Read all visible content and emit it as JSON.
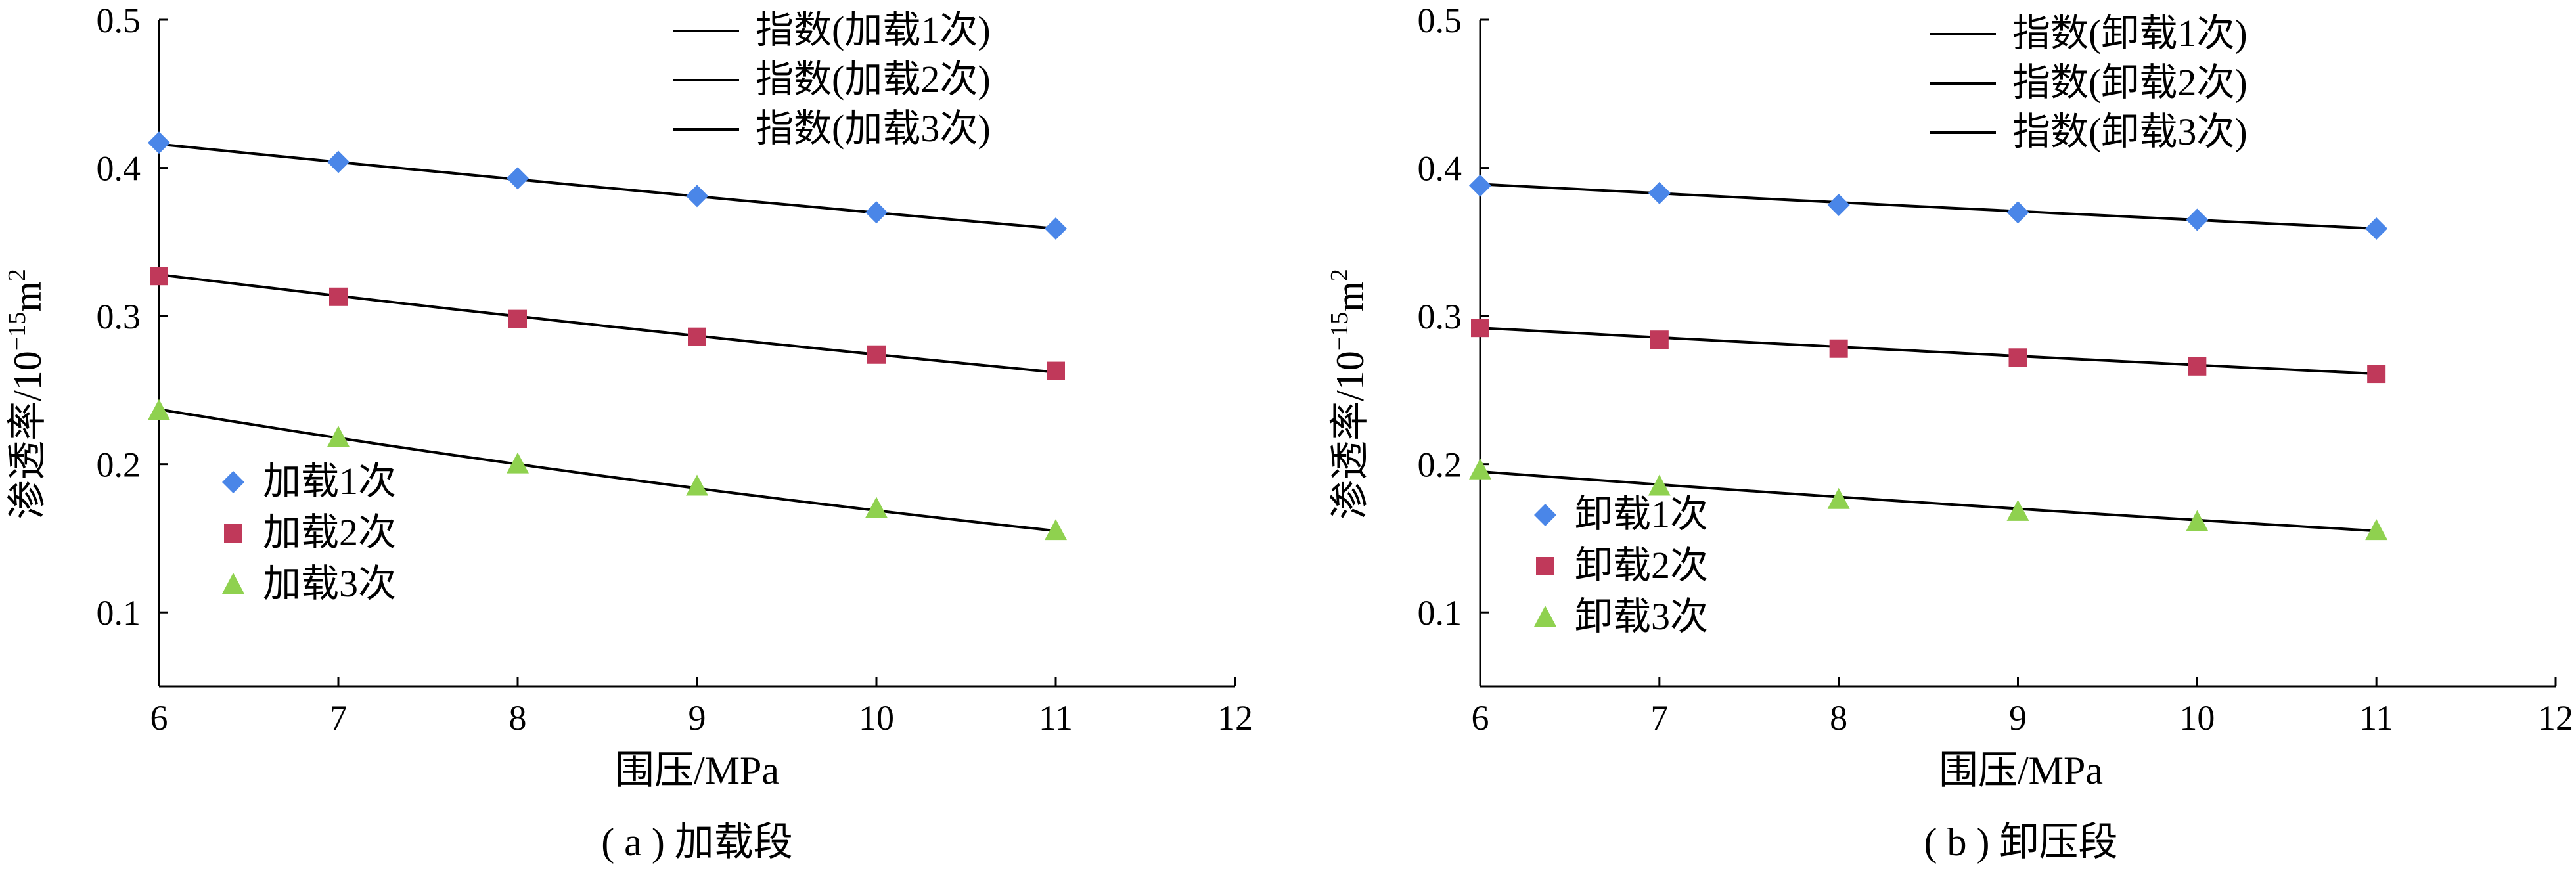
{
  "chart_data": [
    {
      "type": "scatter",
      "caption": "( a ) 加载段",
      "xlabel": "围压/MPa",
      "ylabel_main": "渗透率/10",
      "ylabel_exp": "−15",
      "ylabel_unit": "m",
      "ylabel_unit_exp": "2",
      "xlim": [
        6,
        12
      ],
      "ylim": [
        0.05,
        0.5
      ],
      "xticks": [
        6,
        7,
        8,
        9,
        10,
        11,
        12
      ],
      "yticks": [
        0.1,
        0.2,
        0.3,
        0.4,
        0.5
      ],
      "x": [
        6,
        7,
        8,
        9,
        10,
        11
      ],
      "series": [
        {
          "name": "加载1次",
          "marker": "diamond",
          "color": "#4a86e8",
          "values": [
            0.417,
            0.404,
            0.393,
            0.381,
            0.37,
            0.359
          ]
        },
        {
          "name": "加载2次",
          "marker": "square",
          "color": "#c0395a",
          "values": [
            0.327,
            0.313,
            0.298,
            0.286,
            0.274,
            0.263
          ]
        },
        {
          "name": "加载3次",
          "marker": "triangle",
          "color": "#8fd14f",
          "values": [
            0.236,
            0.218,
            0.2,
            0.185,
            0.17,
            0.155
          ]
        }
      ],
      "fits": [
        {
          "name": "指数(加载1次)",
          "start": 0.416,
          "end": 0.359
        },
        {
          "name": "指数(加载2次)",
          "start": 0.328,
          "end": 0.262
        },
        {
          "name": "指数(加载3次)",
          "start": 0.237,
          "end": 0.155
        }
      ]
    },
    {
      "type": "scatter",
      "caption": "( b ) 卸压段",
      "xlabel": "围压/MPa",
      "ylabel_main": "渗透率/10",
      "ylabel_exp": "−15",
      "ylabel_unit": "m",
      "ylabel_unit_exp": "2",
      "xlim": [
        6,
        12
      ],
      "ylim": [
        0.05,
        0.5
      ],
      "xticks": [
        6,
        7,
        8,
        9,
        10,
        11,
        12
      ],
      "yticks": [
        0.1,
        0.2,
        0.3,
        0.4,
        0.5
      ],
      "x": [
        6,
        7,
        8,
        9,
        10,
        11
      ],
      "series": [
        {
          "name": "卸载1次",
          "marker": "diamond",
          "color": "#4a86e8",
          "values": [
            0.388,
            0.383,
            0.375,
            0.37,
            0.365,
            0.359
          ]
        },
        {
          "name": "卸载2次",
          "marker": "square",
          "color": "#c0395a",
          "values": [
            0.292,
            0.284,
            0.278,
            0.272,
            0.266,
            0.261
          ]
        },
        {
          "name": "卸载3次",
          "marker": "triangle",
          "color": "#8fd14f",
          "values": [
            0.196,
            0.185,
            0.176,
            0.168,
            0.161,
            0.155
          ]
        }
      ],
      "fits": [
        {
          "name": "指数(卸载1次)",
          "start": 0.389,
          "end": 0.359
        },
        {
          "name": "指数(卸载2次)",
          "start": 0.292,
          "end": 0.261
        },
        {
          "name": "指数(卸载3次)",
          "start": 0.195,
          "end": 0.155
        }
      ]
    }
  ]
}
